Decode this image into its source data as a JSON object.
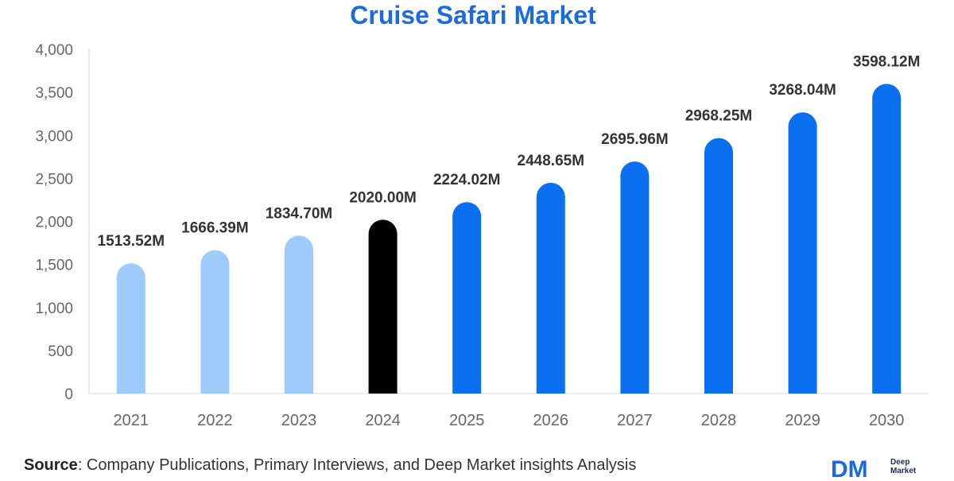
{
  "colors": {
    "title": "#1a6be0",
    "historic": "#9fcbfa",
    "current": "#000000",
    "forecast": "#0a6ff0",
    "axis": "#666666",
    "label": "#333333"
  },
  "chart_data": {
    "type": "bar",
    "title": "Cruise Safari Market",
    "categories": [
      "2021",
      "2022",
      "2023",
      "2024",
      "2025",
      "2026",
      "2027",
      "2028",
      "2029",
      "2030"
    ],
    "values": [
      1513.52,
      1666.39,
      1834.7,
      2020.0,
      2224.02,
      2448.65,
      2695.96,
      2968.25,
      3268.04,
      3598.12
    ],
    "data_labels": [
      "1513.52M",
      "1666.39M",
      "1834.70M",
      "2020.00M",
      "2224.02M",
      "2448.65M",
      "2695.96M",
      "2968.25M",
      "3268.04M",
      "3598.12M"
    ],
    "bar_kind": [
      "historic",
      "historic",
      "historic",
      "current",
      "forecast",
      "forecast",
      "forecast",
      "forecast",
      "forecast",
      "forecast"
    ],
    "yticks": [
      "0",
      "500",
      "1,000",
      "1,500",
      "2,000",
      "2,500",
      "3,000",
      "3,500",
      "4,000"
    ],
    "ylim": [
      0,
      4000
    ],
    "xlabel": "",
    "ylabel": ""
  },
  "footer": {
    "source_label": "Source",
    "source_text": ": Company Publications, Primary Interviews, and Deep Market insights Analysis",
    "logo_mark": "DM",
    "logo_line1": "Deep",
    "logo_line2": "Market"
  }
}
